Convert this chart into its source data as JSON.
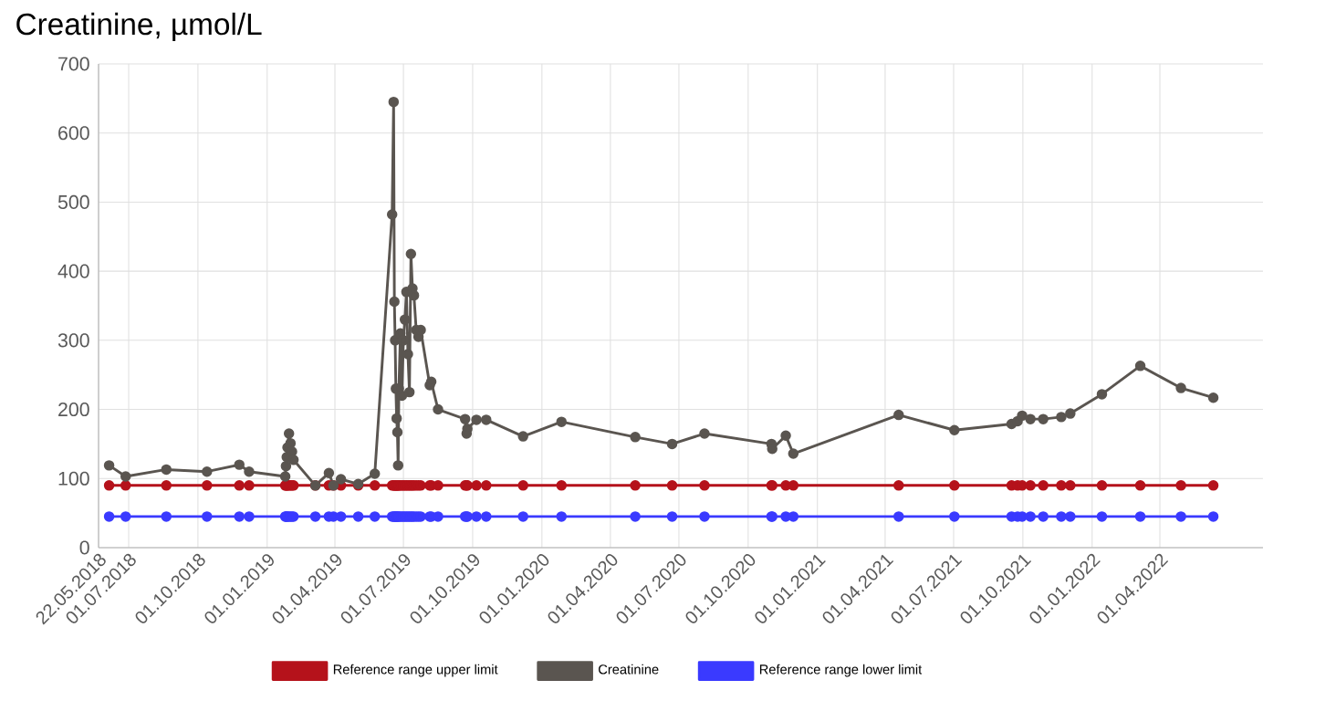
{
  "chart_data": {
    "type": "line",
    "title": "Creatinine, µmol/L",
    "x": [
      "2018-06-05",
      "2018-06-27",
      "2018-08-20",
      "2018-10-13",
      "2018-11-25",
      "2018-12-08",
      "2019-01-25",
      "2019-01-26",
      "2019-01-27",
      "2019-01-28",
      "2019-01-30",
      "2019-02-01",
      "2019-02-03",
      "2019-02-05",
      "2019-03-06",
      "2019-03-24",
      "2019-03-30",
      "2019-04-09",
      "2019-05-02",
      "2019-05-24",
      "2019-06-16",
      "2019-06-18",
      "2019-06-19",
      "2019-06-20",
      "2019-06-21",
      "2019-06-22",
      "2019-06-23",
      "2019-06-24",
      "2019-06-25",
      "2019-06-27",
      "2019-06-29",
      "2019-07-01",
      "2019-07-03",
      "2019-07-05",
      "2019-07-07",
      "2019-07-09",
      "2019-07-11",
      "2019-07-13",
      "2019-07-15",
      "2019-07-18",
      "2019-07-21",
      "2019-07-24",
      "2019-08-05",
      "2019-08-07",
      "2019-08-16",
      "2019-09-21",
      "2019-09-23",
      "2019-09-24",
      "2019-10-06",
      "2019-10-19",
      "2019-12-07",
      "2020-01-27",
      "2020-05-04",
      "2020-06-22",
      "2020-08-04",
      "2020-11-01",
      "2020-11-02",
      "2020-11-20",
      "2020-11-30",
      "2021-04-19",
      "2021-07-02",
      "2021-09-16",
      "2021-09-24",
      "2021-09-30",
      "2021-10-11",
      "2021-10-28",
      "2021-11-21",
      "2021-12-03",
      "2022-01-14",
      "2022-03-06",
      "2022-04-29",
      "2022-06-11"
    ],
    "series": [
      {
        "name": "Reference range upper limit",
        "color": "#b5121b",
        "values": [
          90,
          90,
          90,
          90,
          90,
          90,
          90,
          90,
          90,
          90,
          90,
          90,
          90,
          90,
          90,
          90,
          90,
          90,
          90,
          90,
          90,
          90,
          90,
          90,
          90,
          90,
          90,
          90,
          90,
          90,
          90,
          90,
          90,
          90,
          90,
          90,
          90,
          90,
          90,
          90,
          90,
          90,
          90,
          90,
          90,
          90,
          90,
          90,
          90,
          90,
          90,
          90,
          90,
          90,
          90,
          90,
          90,
          90,
          90,
          90,
          90,
          90,
          90,
          90,
          90,
          90,
          90,
          90,
          90,
          90,
          90,
          90
        ]
      },
      {
        "name": "Creatinine",
        "color": "#5a5550",
        "values": [
          119,
          103,
          113,
          110,
          120,
          110,
          103,
          118,
          131,
          145,
          165,
          151,
          139,
          127,
          90,
          108,
          90,
          99,
          92,
          107,
          482,
          645,
          356,
          300,
          230,
          187,
          167,
          119,
          230,
          310,
          220,
          300,
          330,
          370,
          280,
          225,
          425,
          375,
          365,
          315,
          305,
          315,
          235,
          240,
          200,
          186,
          165,
          172,
          185,
          185,
          161,
          182,
          160,
          150,
          165,
          150,
          143,
          162,
          136,
          192,
          170,
          179,
          183,
          191,
          186,
          186,
          189,
          194,
          222,
          263,
          231,
          217
        ]
      },
      {
        "name": "Reference range lower limit",
        "color": "#3a3aff",
        "values": [
          45,
          45,
          45,
          45,
          45,
          45,
          45,
          45,
          45,
          45,
          45,
          45,
          45,
          45,
          45,
          45,
          45,
          45,
          45,
          45,
          45,
          45,
          45,
          45,
          45,
          45,
          45,
          45,
          45,
          45,
          45,
          45,
          45,
          45,
          45,
          45,
          45,
          45,
          45,
          45,
          45,
          45,
          45,
          45,
          45,
          45,
          45,
          45,
          45,
          45,
          45,
          45,
          45,
          45,
          45,
          45,
          45,
          45,
          45,
          45,
          45,
          45,
          45,
          45,
          45,
          45,
          45,
          45,
          45,
          45,
          45,
          45
        ]
      }
    ],
    "xlim": [
      "2018-05-22",
      "2022-08-16"
    ],
    "xticks": [
      {
        "value": "2018-05-22",
        "label": "22.05.2018"
      },
      {
        "value": "2018-07-01",
        "label": "01.07.2018"
      },
      {
        "value": "2018-10-01",
        "label": "01.10.2018"
      },
      {
        "value": "2019-01-01",
        "label": "01.01.2019"
      },
      {
        "value": "2019-04-01",
        "label": "01.04.2019"
      },
      {
        "value": "2019-07-01",
        "label": "01.07.2019"
      },
      {
        "value": "2019-10-01",
        "label": "01.10.2019"
      },
      {
        "value": "2020-01-01",
        "label": "01.01.2020"
      },
      {
        "value": "2020-04-01",
        "label": "01.04.2020"
      },
      {
        "value": "2020-07-01",
        "label": "01.07.2020"
      },
      {
        "value": "2020-10-01",
        "label": "01.10.2020"
      },
      {
        "value": "2021-01-01",
        "label": "01.01.2021"
      },
      {
        "value": "2021-04-01",
        "label": "01.04.2021"
      },
      {
        "value": "2021-07-01",
        "label": "01.07.2021"
      },
      {
        "value": "2021-10-01",
        "label": "01.10.2021"
      },
      {
        "value": "2022-01-01",
        "label": "01.01.2022"
      },
      {
        "value": "2022-04-01",
        "label": "01.04.2022"
      }
    ],
    "ylim": [
      0,
      700
    ],
    "yticks": [
      0,
      100,
      200,
      300,
      400,
      500,
      600,
      700
    ],
    "grid": true,
    "legend": "bottom",
    "marker": "circle",
    "line_style": "solid"
  }
}
